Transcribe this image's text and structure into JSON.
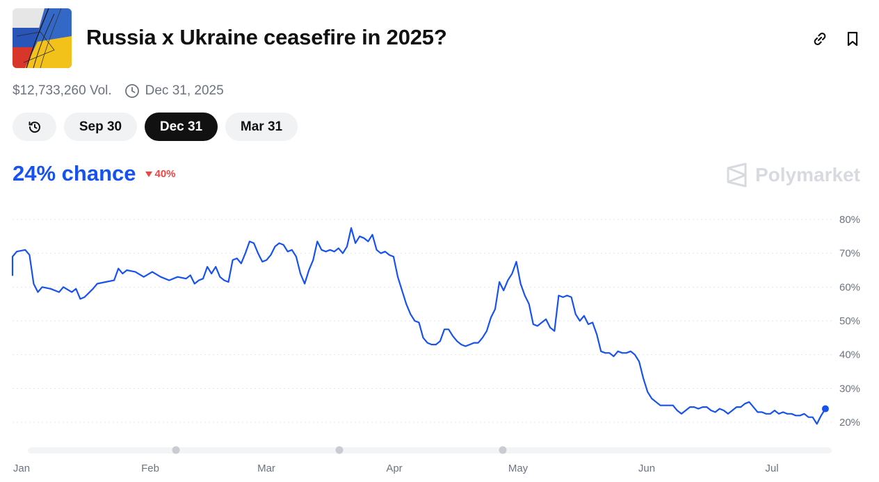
{
  "market": {
    "title": "Russia x Ukraine ceasefire in 2025?",
    "volume": "$12,733,260 Vol.",
    "end_date": "Dec 31, 2025"
  },
  "tabs": {
    "history_icon": "history-icon",
    "items": [
      {
        "label": "Sep 30",
        "active": false
      },
      {
        "label": "Dec 31",
        "active": true
      },
      {
        "label": "Mar 31",
        "active": false
      }
    ]
  },
  "odds": {
    "chance": "24% chance",
    "change": "40%",
    "change_direction": "down",
    "color": "#1652f0",
    "change_color": "#ef4444"
  },
  "brand": {
    "name": "Polymarket"
  },
  "icons": {
    "link": "link-icon",
    "bookmark": "bookmark-icon",
    "clock": "clock-icon"
  },
  "chart_data": {
    "type": "line",
    "title": "",
    "xlabel": "",
    "ylabel": "",
    "x_ticks": [
      "Jan",
      "Feb",
      "Mar",
      "Apr",
      "May",
      "Jun",
      "Jul"
    ],
    "y_ticks": [
      "20%",
      "30%",
      "40%",
      "50%",
      "60%",
      "70%",
      "80%"
    ],
    "y_tick_values": [
      20,
      30,
      40,
      50,
      60,
      70,
      80
    ],
    "ylim": [
      16,
      81
    ],
    "grid": "horizontal dotted",
    "series": [
      {
        "color": "#1652f0",
        "points": [
          [
            "2025-01-01",
            63.5
          ],
          [
            "2025-01-01",
            69
          ],
          [
            "2025-01-02",
            70.5
          ],
          [
            "2025-01-04",
            71
          ],
          [
            "2025-01-05",
            69.5
          ],
          [
            "2025-01-06",
            61
          ],
          [
            "2025-01-07",
            58.5
          ],
          [
            "2025-01-08",
            60
          ],
          [
            "2025-01-10",
            59.5
          ],
          [
            "2025-01-12",
            58.5
          ],
          [
            "2025-01-13",
            60
          ],
          [
            "2025-01-15",
            58.5
          ],
          [
            "2025-01-16",
            59.5
          ],
          [
            "2025-01-17",
            56.5
          ],
          [
            "2025-01-18",
            57
          ],
          [
            "2025-01-20",
            59.5
          ],
          [
            "2025-01-21",
            61
          ],
          [
            "2025-01-23",
            61.5
          ],
          [
            "2025-01-25",
            62
          ],
          [
            "2025-01-26",
            65.5
          ],
          [
            "2025-01-27",
            64
          ],
          [
            "2025-01-28",
            65
          ],
          [
            "2025-01-30",
            64.5
          ],
          [
            "2025-02-01",
            63
          ],
          [
            "2025-02-03",
            64.5
          ],
          [
            "2025-02-05",
            63
          ],
          [
            "2025-02-07",
            62
          ],
          [
            "2025-02-09",
            63
          ],
          [
            "2025-02-11",
            62.5
          ],
          [
            "2025-02-12",
            63.5
          ],
          [
            "2025-02-13",
            61
          ],
          [
            "2025-02-14",
            62
          ],
          [
            "2025-02-15",
            62.5
          ],
          [
            "2025-02-16",
            66
          ],
          [
            "2025-02-17",
            64
          ],
          [
            "2025-02-18",
            66
          ],
          [
            "2025-02-19",
            63
          ],
          [
            "2025-02-20",
            62
          ],
          [
            "2025-02-21",
            61.5
          ],
          [
            "2025-02-22",
            68
          ],
          [
            "2025-02-23",
            68.5
          ],
          [
            "2025-02-24",
            67
          ],
          [
            "2025-02-25",
            70
          ],
          [
            "2025-02-26",
            73.5
          ],
          [
            "2025-02-27",
            73
          ],
          [
            "2025-02-28",
            70
          ],
          [
            "2025-03-01",
            67.5
          ],
          [
            "2025-03-02",
            68
          ],
          [
            "2025-03-03",
            69.5
          ],
          [
            "2025-03-04",
            72
          ],
          [
            "2025-03-05",
            73
          ],
          [
            "2025-03-06",
            72.5
          ],
          [
            "2025-03-07",
            70.5
          ],
          [
            "2025-03-08",
            71
          ],
          [
            "2025-03-09",
            69
          ],
          [
            "2025-03-10",
            64
          ],
          [
            "2025-03-11",
            61
          ],
          [
            "2025-03-12",
            65
          ],
          [
            "2025-03-13",
            68
          ],
          [
            "2025-03-14",
            73.5
          ],
          [
            "2025-03-15",
            71
          ],
          [
            "2025-03-16",
            70.5
          ],
          [
            "2025-03-17",
            71
          ],
          [
            "2025-03-18",
            70.5
          ],
          [
            "2025-03-19",
            71.5
          ],
          [
            "2025-03-20",
            70
          ],
          [
            "2025-03-21",
            72
          ],
          [
            "2025-03-22",
            77.5
          ],
          [
            "2025-03-23",
            73
          ],
          [
            "2025-03-24",
            75
          ],
          [
            "2025-03-25",
            74.5
          ],
          [
            "2025-03-26",
            73.5
          ],
          [
            "2025-03-27",
            75.5
          ],
          [
            "2025-03-28",
            71
          ],
          [
            "2025-03-29",
            70
          ],
          [
            "2025-03-30",
            70.5
          ],
          [
            "2025-03-31",
            69.5
          ],
          [
            "2025-04-01",
            69
          ],
          [
            "2025-04-02",
            63
          ],
          [
            "2025-04-03",
            59
          ],
          [
            "2025-04-04",
            55
          ],
          [
            "2025-04-05",
            52
          ],
          [
            "2025-04-06",
            50
          ],
          [
            "2025-04-07",
            49.5
          ],
          [
            "2025-04-08",
            45
          ],
          [
            "2025-04-09",
            43.5
          ],
          [
            "2025-04-10",
            43
          ],
          [
            "2025-04-11",
            43
          ],
          [
            "2025-04-12",
            44
          ],
          [
            "2025-04-13",
            47.5
          ],
          [
            "2025-04-14",
            47.5
          ],
          [
            "2025-04-15",
            45.5
          ],
          [
            "2025-04-16",
            44
          ],
          [
            "2025-04-17",
            43
          ],
          [
            "2025-04-18",
            42.5
          ],
          [
            "2025-04-19",
            43
          ],
          [
            "2025-04-20",
            43.5
          ],
          [
            "2025-04-21",
            43.5
          ],
          [
            "2025-04-22",
            45
          ],
          [
            "2025-04-23",
            47
          ],
          [
            "2025-04-24",
            51
          ],
          [
            "2025-04-25",
            53.5
          ],
          [
            "2025-04-26",
            61.5
          ],
          [
            "2025-04-27",
            59
          ],
          [
            "2025-04-28",
            62
          ],
          [
            "2025-04-29",
            64
          ],
          [
            "2025-04-30",
            67.5
          ],
          [
            "2025-05-01",
            61
          ],
          [
            "2025-05-02",
            57.5
          ],
          [
            "2025-05-03",
            55
          ],
          [
            "2025-05-04",
            49
          ],
          [
            "2025-05-05",
            48.5
          ],
          [
            "2025-05-06",
            49.5
          ],
          [
            "2025-05-07",
            50.5
          ],
          [
            "2025-05-08",
            48
          ],
          [
            "2025-05-09",
            47
          ],
          [
            "2025-05-10",
            57.5
          ],
          [
            "2025-05-11",
            57
          ],
          [
            "2025-05-12",
            57.5
          ],
          [
            "2025-05-13",
            57
          ],
          [
            "2025-05-14",
            52
          ],
          [
            "2025-05-15",
            50
          ],
          [
            "2025-05-16",
            51.5
          ],
          [
            "2025-05-17",
            49
          ],
          [
            "2025-05-18",
            49.5
          ],
          [
            "2025-05-19",
            46
          ],
          [
            "2025-05-20",
            41
          ],
          [
            "2025-05-21",
            40.5
          ],
          [
            "2025-05-22",
            40.5
          ],
          [
            "2025-05-23",
            39.5
          ],
          [
            "2025-05-24",
            41
          ],
          [
            "2025-05-25",
            40.5
          ],
          [
            "2025-05-26",
            40.5
          ],
          [
            "2025-05-27",
            41
          ],
          [
            "2025-05-28",
            40
          ],
          [
            "2025-05-29",
            38
          ],
          [
            "2025-05-30",
            33
          ],
          [
            "2025-05-31",
            29
          ],
          [
            "2025-06-01",
            27
          ],
          [
            "2025-06-02",
            26
          ],
          [
            "2025-06-03",
            25
          ],
          [
            "2025-06-04",
            25
          ],
          [
            "2025-06-05",
            25
          ],
          [
            "2025-06-06",
            25
          ],
          [
            "2025-06-07",
            23.5
          ],
          [
            "2025-06-08",
            22.5
          ],
          [
            "2025-06-09",
            23.5
          ],
          [
            "2025-06-10",
            24.5
          ],
          [
            "2025-06-11",
            24.5
          ],
          [
            "2025-06-12",
            24
          ],
          [
            "2025-06-13",
            24.5
          ],
          [
            "2025-06-14",
            24.5
          ],
          [
            "2025-06-15",
            23.5
          ],
          [
            "2025-06-16",
            23
          ],
          [
            "2025-06-17",
            24
          ],
          [
            "2025-06-18",
            23.5
          ],
          [
            "2025-06-19",
            22.5
          ],
          [
            "2025-06-20",
            23.5
          ],
          [
            "2025-06-21",
            24.5
          ],
          [
            "2025-06-22",
            24.5
          ],
          [
            "2025-06-23",
            25.5
          ],
          [
            "2025-06-24",
            26
          ],
          [
            "2025-06-25",
            24.5
          ],
          [
            "2025-06-26",
            23
          ],
          [
            "2025-06-27",
            23
          ],
          [
            "2025-06-28",
            22.5
          ],
          [
            "2025-06-29",
            22.5
          ],
          [
            "2025-06-30",
            23.5
          ],
          [
            "2025-07-01",
            22.5
          ],
          [
            "2025-07-02",
            23
          ],
          [
            "2025-07-03",
            22.5
          ],
          [
            "2025-07-04",
            22.5
          ],
          [
            "2025-07-05",
            22
          ],
          [
            "2025-07-06",
            22
          ],
          [
            "2025-07-07",
            22.5
          ],
          [
            "2025-07-08",
            21.5
          ],
          [
            "2025-07-09",
            21.5
          ],
          [
            "2025-07-10",
            19.5
          ],
          [
            "2025-07-11",
            22
          ],
          [
            "2025-07-12",
            24
          ]
        ]
      }
    ]
  }
}
